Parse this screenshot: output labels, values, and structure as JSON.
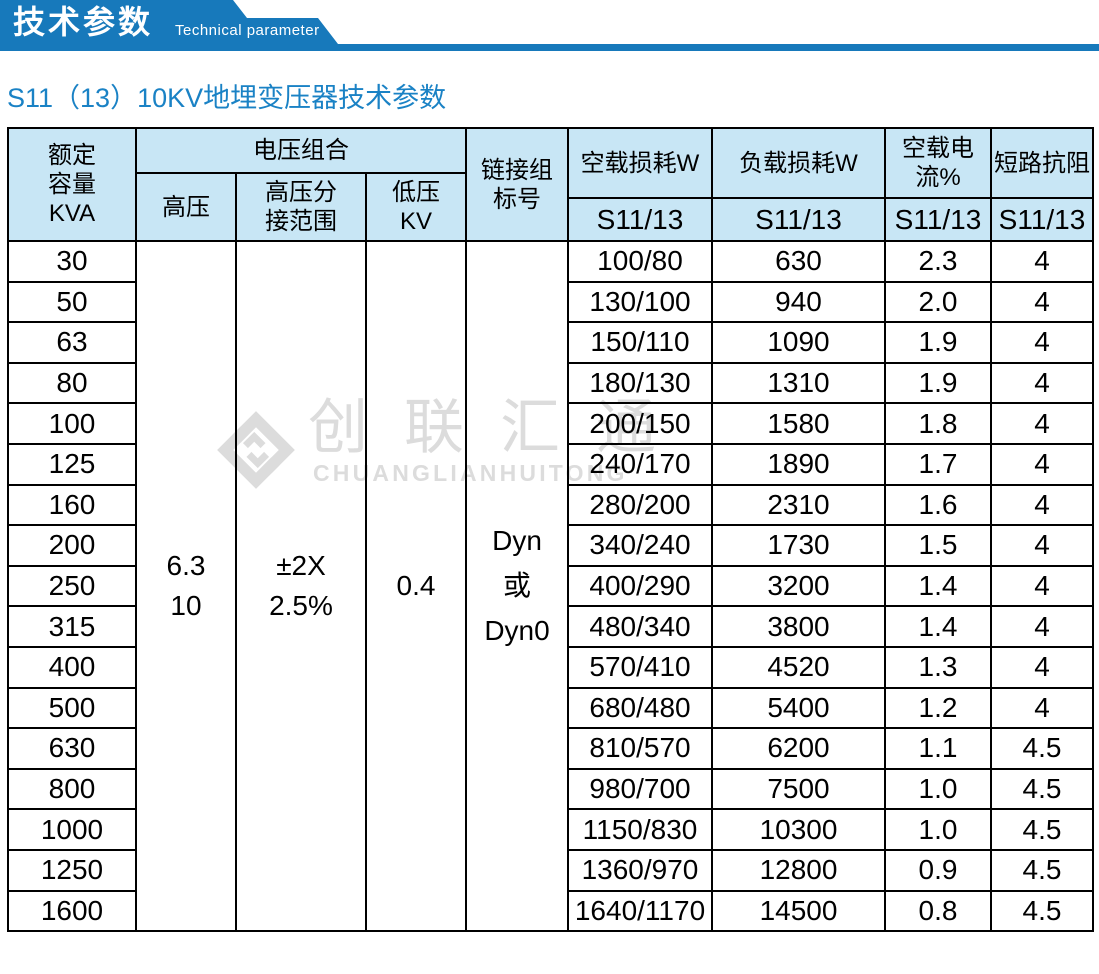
{
  "banner": {
    "title_zh": "技术参数",
    "title_en": "Technical parameter"
  },
  "page_title": "S11（13）10KV地埋变压器技术参数",
  "watermark": {
    "name_zh": "创联汇通",
    "name_en": "CHUANGLIANHUITONG"
  },
  "colors": {
    "banner_blue": "#1779bb",
    "subtitle_blue": "#1a82c5",
    "header_bg": "#c8e6f5",
    "border_black": "#000000",
    "watermark_gray": "#dcdcdc"
  },
  "table": {
    "header": {
      "rated_capacity_lines": [
        "额定",
        "容量",
        "KVA"
      ],
      "voltage_group": "电压组合",
      "hv": "高压",
      "hv_tap_lines": [
        "高压分",
        "接范围"
      ],
      "lv_lines": [
        "低压",
        "KV"
      ],
      "connection_lines": [
        "链接组",
        "标号"
      ],
      "no_load_loss": "空载损耗W",
      "load_loss": "负载损耗W",
      "no_load_current": "空载电流%",
      "impedance": "短路抗阻",
      "model_no_load": "S11/13",
      "model_load": "S11/13",
      "model_current": "S11/13",
      "model_impedance": "S11/13"
    },
    "merged": {
      "hv_lines": [
        "6.3",
        "10"
      ],
      "tap_lines": [
        "±2X",
        "2.5%"
      ],
      "lv": "0.4",
      "connection_value_lines": [
        "Dyn",
        "或",
        "Dyn0"
      ]
    },
    "rows": [
      {
        "kva": "30",
        "no_load": "100/80",
        "load": "630",
        "current": "2.3",
        "impedance": "4"
      },
      {
        "kva": "50",
        "no_load": "130/100",
        "load": "940",
        "current": "2.0",
        "impedance": "4"
      },
      {
        "kva": "63",
        "no_load": "150/110",
        "load": "1090",
        "current": "1.9",
        "impedance": "4"
      },
      {
        "kva": "80",
        "no_load": "180/130",
        "load": "1310",
        "current": "1.9",
        "impedance": "4"
      },
      {
        "kva": "100",
        "no_load": "200/150",
        "load": "1580",
        "current": "1.8",
        "impedance": "4"
      },
      {
        "kva": "125",
        "no_load": "240/170",
        "load": "1890",
        "current": "1.7",
        "impedance": "4"
      },
      {
        "kva": "160",
        "no_load": "280/200",
        "load": "2310",
        "current": "1.6",
        "impedance": "4"
      },
      {
        "kva": "200",
        "no_load": "340/240",
        "load": "1730",
        "current": "1.5",
        "impedance": "4"
      },
      {
        "kva": "250",
        "no_load": "400/290",
        "load": "3200",
        "current": "1.4",
        "impedance": "4"
      },
      {
        "kva": "315",
        "no_load": "480/340",
        "load": "3800",
        "current": "1.4",
        "impedance": "4"
      },
      {
        "kva": "400",
        "no_load": "570/410",
        "load": "4520",
        "current": "1.3",
        "impedance": "4"
      },
      {
        "kva": "500",
        "no_load": "680/480",
        "load": "5400",
        "current": "1.2",
        "impedance": "4"
      },
      {
        "kva": "630",
        "no_load": "810/570",
        "load": "6200",
        "current": "1.1",
        "impedance": "4.5"
      },
      {
        "kva": "800",
        "no_load": "980/700",
        "load": "7500",
        "current": "1.0",
        "impedance": "4.5"
      },
      {
        "kva": "1000",
        "no_load": "1150/830",
        "load": "10300",
        "current": "1.0",
        "impedance": "4.5"
      },
      {
        "kva": "1250",
        "no_load": "1360/970",
        "load": "12800",
        "current": "0.9",
        "impedance": "4.5"
      },
      {
        "kva": "1600",
        "no_load": "1640/1170",
        "load": "14500",
        "current": "0.8",
        "impedance": "4.5"
      }
    ]
  }
}
